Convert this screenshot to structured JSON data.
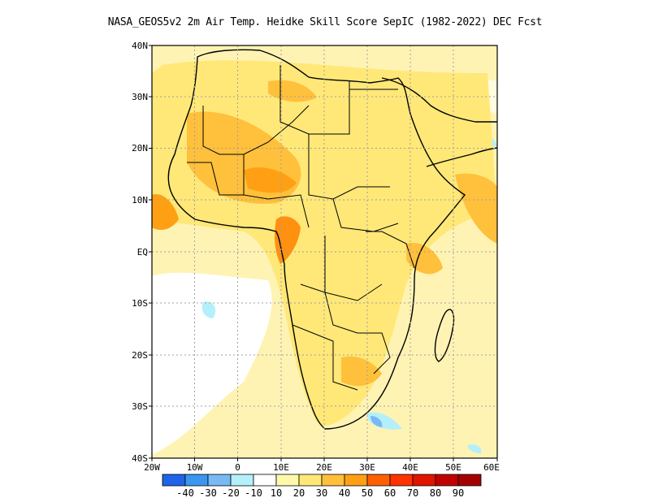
{
  "title": "NASA_GEOS5v2  2m Air Temp. Heidke Skill Score SepIC (1982-2022) DEC Fcst",
  "map": {
    "lon_range": [
      -20,
      60
    ],
    "lat_range": [
      -40,
      40
    ],
    "grid": true,
    "lat_labels": [
      "40N",
      "30N",
      "20N",
      "10N",
      "EQ",
      "10S",
      "20S",
      "30S",
      "40S"
    ],
    "lon_labels": [
      "20W",
      "10W",
      "0",
      "10E",
      "20E",
      "30E",
      "40E",
      "50E",
      "60E"
    ]
  },
  "colorbar": {
    "colors": [
      "#1e64e6",
      "#3c96f0",
      "#78b9f5",
      "#b4f0fa",
      "#ffffff",
      "#fffaaa",
      "#ffe878",
      "#ffc03c",
      "#ffa014",
      "#ff6000",
      "#ff3200",
      "#e11400",
      "#c00000",
      "#a50000"
    ],
    "labels": [
      "-40",
      "-30",
      "-20",
      "-10",
      "10",
      "20",
      "30",
      "40",
      "50",
      "60",
      "70",
      "80",
      "90"
    ]
  }
}
